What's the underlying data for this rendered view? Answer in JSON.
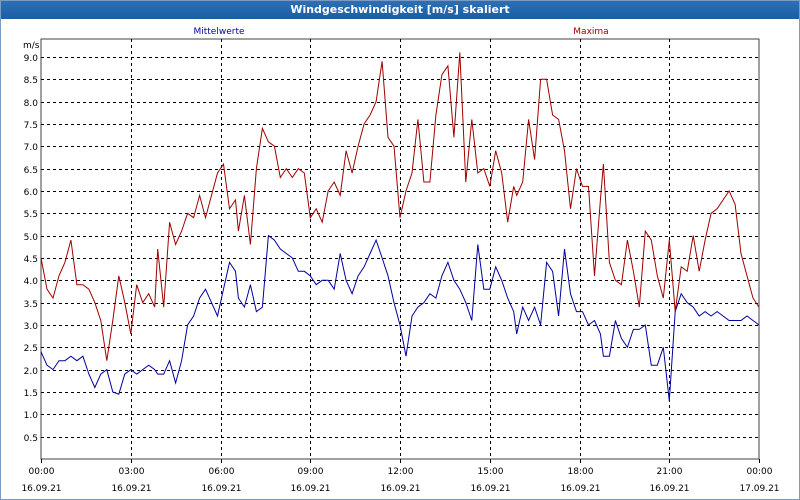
{
  "window": {
    "title": "Windgeschwindigkeit [m/s] skaliert"
  },
  "colors": {
    "mean": "#0000a0",
    "max": "#a00000",
    "grid": "#000000",
    "axis": "#404040"
  },
  "chart_data": {
    "type": "line",
    "unit_label": "m/s",
    "ylim": [
      0,
      9.4
    ],
    "yticks": [
      0.5,
      1.0,
      1.5,
      2.0,
      2.5,
      3.0,
      3.5,
      4.0,
      4.5,
      5.0,
      5.5,
      6.0,
      6.5,
      7.0,
      7.5,
      8.0,
      8.5,
      9.0
    ],
    "ytick_labels": [
      "0.5",
      "1.0",
      "1.5",
      "2.0",
      "2.5",
      "3.0",
      "3.5",
      "4.0",
      "4.5",
      "5.0",
      "5.5",
      "6.0",
      "6.5",
      "7.0",
      "7.5",
      "8.0",
      "8.5",
      "9.0"
    ],
    "x_hours_range": [
      0,
      24
    ],
    "xticks": [
      {
        "time": "00:00",
        "date": "16.09.21",
        "h": 0
      },
      {
        "time": "03:00",
        "date": "16.09.21",
        "h": 3
      },
      {
        "time": "06:00",
        "date": "16.09.21",
        "h": 6
      },
      {
        "time": "09:00",
        "date": "16.09.21",
        "h": 9
      },
      {
        "time": "12:00",
        "date": "16.09.21",
        "h": 12
      },
      {
        "time": "15:00",
        "date": "16.09.21",
        "h": 15
      },
      {
        "time": "18:00",
        "date": "16.09.21",
        "h": 18
      },
      {
        "time": "21:00",
        "date": "16.09.21",
        "h": 21
      },
      {
        "time": "00:00",
        "date": "17.09.21",
        "h": 24
      }
    ],
    "grid": true,
    "series": [
      {
        "name": "Mittelwerte",
        "color": "#0000a0",
        "legend_position": "top-left",
        "points": [
          [
            0,
            2.4
          ],
          [
            0.2,
            2.1
          ],
          [
            0.4,
            2.0
          ],
          [
            0.6,
            2.2
          ],
          [
            0.8,
            2.2
          ],
          [
            1.0,
            2.3
          ],
          [
            1.2,
            2.2
          ],
          [
            1.4,
            2.3
          ],
          [
            1.6,
            1.9
          ],
          [
            1.8,
            1.6
          ],
          [
            2.0,
            1.9
          ],
          [
            2.2,
            2.0
          ],
          [
            2.4,
            1.5
          ],
          [
            2.6,
            1.45
          ],
          [
            2.8,
            1.9
          ],
          [
            3.0,
            2.0
          ],
          [
            3.2,
            1.9
          ],
          [
            3.4,
            2.0
          ],
          [
            3.6,
            2.1
          ],
          [
            3.8,
            2.0
          ],
          [
            3.9,
            1.9
          ],
          [
            4.1,
            1.9
          ],
          [
            4.3,
            2.2
          ],
          [
            4.5,
            1.7
          ],
          [
            4.7,
            2.2
          ],
          [
            4.9,
            3.0
          ],
          [
            5.1,
            3.2
          ],
          [
            5.3,
            3.6
          ],
          [
            5.5,
            3.8
          ],
          [
            5.7,
            3.5
          ],
          [
            5.9,
            3.2
          ],
          [
            6.1,
            3.8
          ],
          [
            6.3,
            4.4
          ],
          [
            6.5,
            4.2
          ],
          [
            6.6,
            3.6
          ],
          [
            6.8,
            3.4
          ],
          [
            7.0,
            3.9
          ],
          [
            7.2,
            3.3
          ],
          [
            7.4,
            3.4
          ],
          [
            7.6,
            5.0
          ],
          [
            7.8,
            4.9
          ],
          [
            8.0,
            4.7
          ],
          [
            8.2,
            4.6
          ],
          [
            8.4,
            4.5
          ],
          [
            8.6,
            4.2
          ],
          [
            8.8,
            4.2
          ],
          [
            9.0,
            4.1
          ],
          [
            9.2,
            3.9
          ],
          [
            9.4,
            4.0
          ],
          [
            9.6,
            4.0
          ],
          [
            9.8,
            3.8
          ],
          [
            10.0,
            4.6
          ],
          [
            10.2,
            4.0
          ],
          [
            10.4,
            3.7
          ],
          [
            10.6,
            4.1
          ],
          [
            10.8,
            4.3
          ],
          [
            11.0,
            4.6
          ],
          [
            11.2,
            4.9
          ],
          [
            11.4,
            4.5
          ],
          [
            11.6,
            4.1
          ],
          [
            11.8,
            3.5
          ],
          [
            12.0,
            3.0
          ],
          [
            12.2,
            2.3
          ],
          [
            12.4,
            3.2
          ],
          [
            12.6,
            3.4
          ],
          [
            12.8,
            3.5
          ],
          [
            13.0,
            3.7
          ],
          [
            13.2,
            3.6
          ],
          [
            13.4,
            4.1
          ],
          [
            13.6,
            4.4
          ],
          [
            13.8,
            4.0
          ],
          [
            14.0,
            3.8
          ],
          [
            14.2,
            3.5
          ],
          [
            14.4,
            3.1
          ],
          [
            14.6,
            4.8
          ],
          [
            14.8,
            3.8
          ],
          [
            15.0,
            3.8
          ],
          [
            15.2,
            4.3
          ],
          [
            15.4,
            4.0
          ],
          [
            15.6,
            3.6
          ],
          [
            15.8,
            3.3
          ],
          [
            15.9,
            2.8
          ],
          [
            16.1,
            3.4
          ],
          [
            16.3,
            3.1
          ],
          [
            16.5,
            3.4
          ],
          [
            16.7,
            3.0
          ],
          [
            16.9,
            4.4
          ],
          [
            17.1,
            4.2
          ],
          [
            17.3,
            3.2
          ],
          [
            17.5,
            4.7
          ],
          [
            17.7,
            3.7
          ],
          [
            17.9,
            3.3
          ],
          [
            18.1,
            3.3
          ],
          [
            18.3,
            3.0
          ],
          [
            18.5,
            3.1
          ],
          [
            18.7,
            2.8
          ],
          [
            18.8,
            2.3
          ],
          [
            19.0,
            2.3
          ],
          [
            19.2,
            3.1
          ],
          [
            19.4,
            2.7
          ],
          [
            19.6,
            2.5
          ],
          [
            19.8,
            2.9
          ],
          [
            20.0,
            2.9
          ],
          [
            20.2,
            3.0
          ],
          [
            20.4,
            2.1
          ],
          [
            20.6,
            2.1
          ],
          [
            20.8,
            2.5
          ],
          [
            21.0,
            1.3
          ],
          [
            21.2,
            3.3
          ],
          [
            21.4,
            3.7
          ],
          [
            21.6,
            3.5
          ],
          [
            21.8,
            3.4
          ],
          [
            22.0,
            3.2
          ],
          [
            22.2,
            3.3
          ],
          [
            22.4,
            3.2
          ],
          [
            22.6,
            3.3
          ],
          [
            22.8,
            3.2
          ],
          [
            23.0,
            3.1
          ],
          [
            23.2,
            3.1
          ],
          [
            23.4,
            3.1
          ],
          [
            23.6,
            3.2
          ],
          [
            23.8,
            3.1
          ],
          [
            24.0,
            3.0
          ]
        ]
      },
      {
        "name": "Maxima",
        "color": "#a00000",
        "legend_position": "top-right",
        "points": [
          [
            0,
            4.5
          ],
          [
            0.2,
            3.8
          ],
          [
            0.4,
            3.6
          ],
          [
            0.6,
            4.1
          ],
          [
            0.8,
            4.4
          ],
          [
            1.0,
            4.9
          ],
          [
            1.2,
            3.9
          ],
          [
            1.4,
            3.9
          ],
          [
            1.6,
            3.8
          ],
          [
            1.8,
            3.5
          ],
          [
            2.0,
            3.1
          ],
          [
            2.2,
            2.2
          ],
          [
            2.4,
            3.1
          ],
          [
            2.6,
            4.1
          ],
          [
            2.8,
            3.5
          ],
          [
            3.0,
            2.8
          ],
          [
            3.2,
            3.9
          ],
          [
            3.4,
            3.5
          ],
          [
            3.6,
            3.7
          ],
          [
            3.8,
            3.4
          ],
          [
            3.9,
            4.7
          ],
          [
            4.1,
            3.4
          ],
          [
            4.3,
            5.3
          ],
          [
            4.5,
            4.8
          ],
          [
            4.7,
            5.1
          ],
          [
            4.9,
            5.5
          ],
          [
            5.1,
            5.4
          ],
          [
            5.3,
            5.9
          ],
          [
            5.5,
            5.4
          ],
          [
            5.7,
            5.9
          ],
          [
            5.9,
            6.4
          ],
          [
            6.1,
            6.6
          ],
          [
            6.3,
            5.6
          ],
          [
            6.5,
            5.8
          ],
          [
            6.6,
            5.1
          ],
          [
            6.8,
            5.9
          ],
          [
            7.0,
            4.8
          ],
          [
            7.2,
            6.5
          ],
          [
            7.4,
            7.4
          ],
          [
            7.6,
            7.1
          ],
          [
            7.8,
            7.0
          ],
          [
            8.0,
            6.3
          ],
          [
            8.2,
            6.5
          ],
          [
            8.4,
            6.3
          ],
          [
            8.6,
            6.5
          ],
          [
            8.8,
            6.4
          ],
          [
            9.0,
            5.4
          ],
          [
            9.2,
            5.6
          ],
          [
            9.4,
            5.3
          ],
          [
            9.6,
            6.0
          ],
          [
            9.8,
            6.2
          ],
          [
            10.0,
            5.9
          ],
          [
            10.2,
            6.9
          ],
          [
            10.4,
            6.4
          ],
          [
            10.6,
            7.0
          ],
          [
            10.8,
            7.5
          ],
          [
            11.0,
            7.7
          ],
          [
            11.2,
            8.0
          ],
          [
            11.4,
            8.9
          ],
          [
            11.6,
            7.2
          ],
          [
            11.8,
            7.0
          ],
          [
            12.0,
            5.4
          ],
          [
            12.2,
            6.0
          ],
          [
            12.4,
            6.4
          ],
          [
            12.6,
            7.6
          ],
          [
            12.8,
            6.2
          ],
          [
            13.0,
            6.2
          ],
          [
            13.2,
            7.7
          ],
          [
            13.4,
            8.6
          ],
          [
            13.6,
            8.8
          ],
          [
            13.8,
            7.2
          ],
          [
            14.0,
            9.1
          ],
          [
            14.2,
            6.2
          ],
          [
            14.4,
            7.6
          ],
          [
            14.6,
            6.4
          ],
          [
            14.8,
            6.5
          ],
          [
            15.0,
            6.1
          ],
          [
            15.2,
            6.9
          ],
          [
            15.4,
            6.4
          ],
          [
            15.6,
            5.3
          ],
          [
            15.8,
            6.1
          ],
          [
            15.9,
            5.9
          ],
          [
            16.1,
            6.2
          ],
          [
            16.3,
            7.6
          ],
          [
            16.5,
            6.7
          ],
          [
            16.7,
            8.5
          ],
          [
            16.9,
            8.5
          ],
          [
            17.1,
            7.7
          ],
          [
            17.3,
            7.6
          ],
          [
            17.5,
            6.9
          ],
          [
            17.7,
            5.6
          ],
          [
            17.9,
            6.5
          ],
          [
            18.1,
            6.1
          ],
          [
            18.3,
            6.1
          ],
          [
            18.5,
            4.1
          ],
          [
            18.7,
            5.8
          ],
          [
            18.8,
            6.6
          ],
          [
            19.0,
            4.4
          ],
          [
            19.2,
            4.0
          ],
          [
            19.4,
            3.9
          ],
          [
            19.6,
            4.9
          ],
          [
            19.8,
            4.2
          ],
          [
            20.0,
            3.4
          ],
          [
            20.2,
            5.1
          ],
          [
            20.4,
            4.9
          ],
          [
            20.6,
            4.1
          ],
          [
            20.8,
            3.6
          ],
          [
            21.0,
            4.9
          ],
          [
            21.2,
            3.3
          ],
          [
            21.4,
            4.3
          ],
          [
            21.6,
            4.2
          ],
          [
            21.8,
            5.0
          ],
          [
            22.0,
            4.2
          ],
          [
            22.2,
            4.9
          ],
          [
            22.4,
            5.5
          ],
          [
            22.6,
            5.6
          ],
          [
            22.8,
            5.8
          ],
          [
            23.0,
            6.0
          ],
          [
            23.2,
            5.7
          ],
          [
            23.4,
            4.6
          ],
          [
            23.6,
            4.1
          ],
          [
            23.8,
            3.6
          ],
          [
            24.0,
            3.4
          ]
        ]
      }
    ]
  }
}
